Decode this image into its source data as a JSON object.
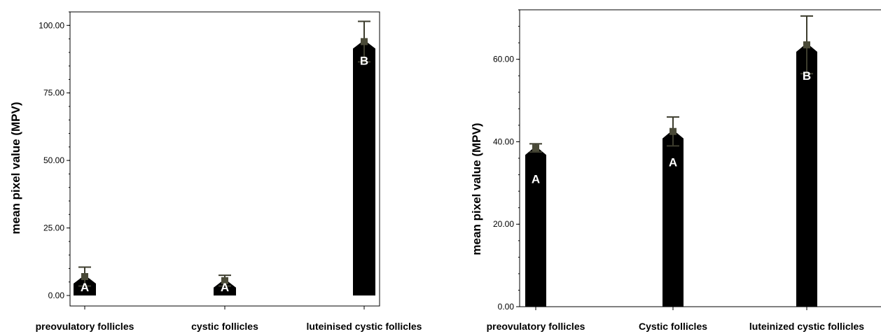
{
  "chart_data": [
    {
      "type": "bar",
      "categories": [
        "preovulatory follicles",
        "cystic follicles",
        "luteinised cystic follicles"
      ],
      "values": [
        7.0,
        5.5,
        94.0
      ],
      "error": [
        3.5,
        2.0,
        7.5
      ],
      "bar_labels": [
        "A",
        "A",
        "B"
      ],
      "ylabel": "mean pixel value (MPV)",
      "ylim": [
        0,
        105
      ],
      "yticks": [
        "0.00",
        "25.00",
        "50.00",
        "75.00",
        "100.00"
      ],
      "grid": false
    },
    {
      "type": "bar",
      "categories": [
        "preovulatory follicles",
        "Cystic follicles",
        "luteinized cystic follicles"
      ],
      "values": [
        38.5,
        42.5,
        63.5
      ],
      "error": [
        1.0,
        3.5,
        7.0
      ],
      "bar_labels": [
        "A",
        "A",
        "B"
      ],
      "ylabel": "mean pixel value (MPV)",
      "ylim": [
        0,
        72
      ],
      "yticks": [
        "0.00",
        "20.00",
        "40.00",
        "60.00"
      ],
      "grid": false
    }
  ],
  "colors": {
    "bar": "#000000",
    "errorbar": "#3d3d2e",
    "axis": "#000000"
  }
}
